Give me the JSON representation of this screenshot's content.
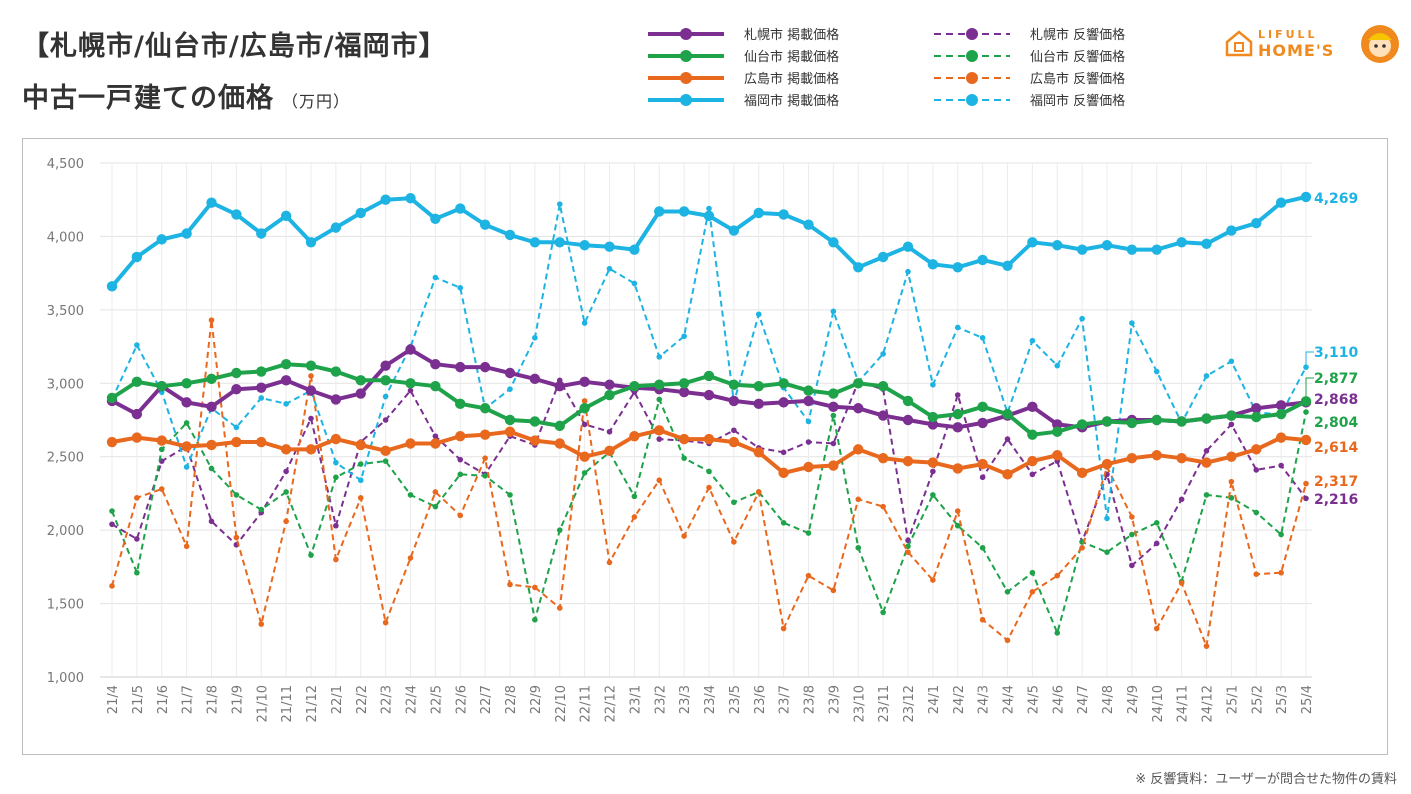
{
  "header": {
    "title_line1": "【札幌市/仙台市/広島市/福岡市】",
    "title_line2": "中古一戸建ての価格",
    "title_unit": "（万円）"
  },
  "logo": {
    "brand_top": "LIFULL",
    "brand_bottom": "HOME'S",
    "icon": "house-icon"
  },
  "footnote": "※ 反響賃料：ユーザーが問合せた物件の賃料",
  "chart_data": {
    "type": "line",
    "title": "【札幌市/仙台市/広島市/福岡市】 中古一戸建ての価格",
    "ylabel": "万円",
    "ylim": [
      1000,
      4500
    ],
    "yticks": [
      1000,
      1500,
      2000,
      2500,
      3000,
      3500,
      4000,
      4500
    ],
    "ytick_labels": [
      "1,000",
      "1,500",
      "2,000",
      "2,500",
      "3,000",
      "3,500",
      "4,000",
      "4,500"
    ],
    "grid": true,
    "legend_position": "top",
    "x": [
      "21/4",
      "21/5",
      "21/6",
      "21/7",
      "21/8",
      "21/9",
      "21/10",
      "21/11",
      "21/12",
      "22/1",
      "22/2",
      "22/3",
      "22/4",
      "22/5",
      "22/6",
      "22/7",
      "22/8",
      "22/9",
      "22/10",
      "22/11",
      "22/12",
      "23/1",
      "23/2",
      "23/3",
      "23/4",
      "23/5",
      "23/6",
      "23/7",
      "23/8",
      "23/9",
      "23/10",
      "23/11",
      "23/12",
      "24/1",
      "24/2",
      "24/3",
      "24/4",
      "24/5",
      "24/6",
      "24/7",
      "24/8",
      "24/9",
      "24/10",
      "24/11",
      "24/12",
      "25/1",
      "25/2",
      "25/3",
      "25/4"
    ],
    "series": [
      {
        "name": "札幌市 掲載価格",
        "color": "#7b2f91",
        "style": "solid",
        "end_label": "2,868",
        "values": [
          2880,
          2790,
          2980,
          2870,
          2840,
          2960,
          2970,
          3020,
          2950,
          2890,
          2930,
          3120,
          3230,
          3130,
          3110,
          3110,
          3070,
          3030,
          2980,
          3010,
          2990,
          2970,
          2960,
          2940,
          2920,
          2880,
          2860,
          2870,
          2880,
          2840,
          2830,
          2780,
          2750,
          2720,
          2700,
          2730,
          2780,
          2840,
          2720,
          2700,
          2740,
          2750,
          2750,
          2740,
          2760,
          2780,
          2830,
          2850,
          2870
        ]
      },
      {
        "name": "仙台市 掲載価格",
        "color": "#1ea24a",
        "style": "solid",
        "end_label": "2,877",
        "values": [
          2900,
          3010,
          2980,
          3000,
          3030,
          3070,
          3080,
          3130,
          3120,
          3080,
          3020,
          3020,
          3000,
          2980,
          2860,
          2830,
          2750,
          2740,
          2710,
          2830,
          2920,
          2980,
          2990,
          3000,
          3050,
          2990,
          2980,
          3000,
          2950,
          2930,
          3000,
          2980,
          2880,
          2770,
          2790,
          2840,
          2790,
          2650,
          2670,
          2720,
          2740,
          2730,
          2750,
          2740,
          2760,
          2780,
          2770,
          2790,
          2877
        ]
      },
      {
        "name": "広島市 掲載価格",
        "color": "#e8681e",
        "style": "solid",
        "end_label": "2,614",
        "values": [
          2600,
          2630,
          2610,
          2570,
          2580,
          2600,
          2600,
          2550,
          2550,
          2620,
          2580,
          2540,
          2590,
          2590,
          2640,
          2650,
          2670,
          2610,
          2590,
          2500,
          2540,
          2640,
          2680,
          2620,
          2620,
          2600,
          2530,
          2390,
          2430,
          2440,
          2550,
          2490,
          2470,
          2460,
          2420,
          2450,
          2380,
          2470,
          2510,
          2390,
          2450,
          2490,
          2510,
          2490,
          2460,
          2500,
          2550,
          2630,
          2614
        ]
      },
      {
        "name": "福岡市 掲載価格",
        "color": "#1db3e3",
        "style": "solid",
        "end_label": "4,269",
        "values": [
          3660,
          3860,
          3980,
          4020,
          4230,
          4150,
          4020,
          4140,
          3960,
          4060,
          4160,
          4250,
          4260,
          4120,
          4190,
          4080,
          4010,
          3960,
          3960,
          3940,
          3930,
          3910,
          4170,
          4170,
          4140,
          4040,
          4160,
          4150,
          4080,
          3960,
          3790,
          3860,
          3930,
          3810,
          3790,
          3840,
          3800,
          3960,
          3940,
          3910,
          3940,
          3910,
          3910,
          3960,
          3950,
          4040,
          4090,
          4230,
          4269
        ]
      },
      {
        "name": "札幌市 反響価格",
        "color": "#7b2f91",
        "style": "dashed",
        "end_label": "2,216",
        "values": [
          2040,
          1940,
          2470,
          2570,
          2060,
          1900,
          2120,
          2400,
          2760,
          2030,
          2600,
          2750,
          2950,
          2640,
          2480,
          2380,
          2640,
          2580,
          3020,
          2720,
          2670,
          2940,
          2620,
          2610,
          2590,
          2680,
          2560,
          2530,
          2600,
          2590,
          3010,
          2960,
          1930,
          2400,
          2920,
          2360,
          2620,
          2380,
          2470,
          1920,
          2380,
          1760,
          1910,
          2210,
          2540,
          2720,
          2410,
          2440,
          2216
        ]
      },
      {
        "name": "仙台市 反響価格",
        "color": "#1ea24a",
        "style": "dashed",
        "end_label": "2,804",
        "values": [
          2130,
          1710,
          2550,
          2730,
          2420,
          2240,
          2140,
          2260,
          1830,
          2360,
          2450,
          2470,
          2240,
          2160,
          2380,
          2370,
          2240,
          1390,
          2000,
          2390,
          2530,
          2230,
          2890,
          2490,
          2400,
          2190,
          2260,
          2050,
          1980,
          2780,
          1880,
          1440,
          1890,
          2240,
          2030,
          1880,
          1580,
          1710,
          1300,
          1920,
          1850,
          1970,
          2050,
          1650,
          2240,
          2220,
          2120,
          1970,
          2804
        ]
      },
      {
        "name": "広島市 反響価格",
        "color": "#e8681e",
        "style": "dashed",
        "end_label": "2,317",
        "values": [
          1620,
          2220,
          2280,
          1890,
          3430,
          1950,
          1360,
          2060,
          3050,
          1800,
          2220,
          1370,
          1810,
          2260,
          2100,
          2490,
          1630,
          1610,
          1470,
          2880,
          1780,
          2090,
          2340,
          1960,
          2290,
          1920,
          2260,
          1330,
          1690,
          1590,
          2210,
          2160,
          1850,
          1660,
          2130,
          1390,
          1250,
          1580,
          1690,
          1880,
          2430,
          2090,
          1330,
          1640,
          1210,
          2330,
          1700,
          1710,
          2317
        ]
      },
      {
        "name": "福岡市 反響価格",
        "color": "#1db3e3",
        "style": "dashed",
        "end_label": "3,110",
        "values": [
          2890,
          3260,
          2940,
          2430,
          2830,
          2700,
          2900,
          2860,
          2950,
          2460,
          2340,
          2910,
          3250,
          3720,
          3650,
          2830,
          2960,
          3310,
          4220,
          3410,
          3780,
          3680,
          3180,
          3320,
          4190,
          2870,
          3470,
          2970,
          2740,
          3490,
          3010,
          3200,
          3760,
          2990,
          3380,
          3310,
          2800,
          3290,
          3120,
          3440,
          2080,
          3410,
          3080,
          2730,
          3050,
          3150,
          2800,
          2790,
          3110
        ]
      }
    ]
  }
}
